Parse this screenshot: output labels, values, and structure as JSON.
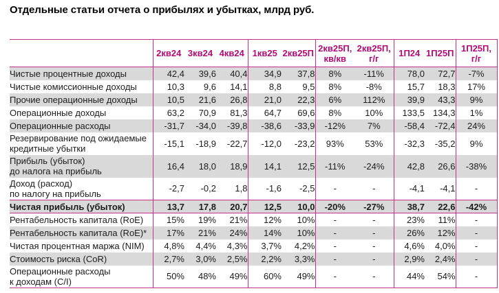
{
  "title": "Отдельные статьи отчета о прибылях и убытках, млрд руб.",
  "colors": {
    "accent_text": "#b10b74",
    "table_border": "#c92d88",
    "row_stripe": "#d9d9d9",
    "body_text": "#1c1c1c",
    "background": "#ffffff"
  },
  "table": {
    "label_col_width": 208,
    "columns": [
      {
        "header": [
          "2кв24"
        ],
        "width": 46,
        "align": "num",
        "group_start": true,
        "group_end": false
      },
      {
        "header": [
          "3кв24"
        ],
        "width": 46,
        "align": "num",
        "group_start": false,
        "group_end": false
      },
      {
        "header": [
          "4кв24"
        ],
        "width": 46,
        "align": "num",
        "group_start": false,
        "group_end": false
      },
      {
        "header": [
          "1кв25"
        ],
        "width": 49,
        "align": "num",
        "group_start": true,
        "group_end": false
      },
      {
        "header": [
          "2кв25П"
        ],
        "width": 49,
        "align": "num",
        "group_start": false,
        "group_end": false
      },
      {
        "header": [
          "2кв25П,",
          "кв/кв"
        ],
        "width": 57,
        "align": "pct",
        "group_start": true,
        "group_end": false
      },
      {
        "header": [
          "2кв25П,",
          "г/г"
        ],
        "width": 57,
        "align": "pct",
        "group_start": false,
        "group_end": false
      },
      {
        "header": [
          "1П24"
        ],
        "width": 45,
        "align": "num",
        "group_start": true,
        "group_end": false
      },
      {
        "header": [
          "1П25П"
        ],
        "width": 45,
        "align": "num",
        "group_start": false,
        "group_end": false
      },
      {
        "header": [
          "1П25П,",
          "г/г"
        ],
        "width": 60,
        "align": "pct",
        "group_start": true,
        "group_end": true
      }
    ],
    "rows": [
      {
        "label": [
          "Чистые процентные доходы"
        ],
        "stripe": true,
        "bold": false,
        "total": false,
        "values": [
          "42,4",
          "39,6",
          "40,4",
          "34,9",
          "37,8",
          "8%",
          "-11%",
          "78,0",
          "72,7",
          "-7%"
        ]
      },
      {
        "label": [
          "Чистые комиссионные доходы"
        ],
        "stripe": false,
        "bold": false,
        "total": false,
        "values": [
          "10,3",
          "9,6",
          "14,1",
          "8,8",
          "9,5",
          "8%",
          "-8%",
          "15,7",
          "18,3",
          "17%"
        ]
      },
      {
        "label": [
          "Прочие операционные доходы"
        ],
        "stripe": true,
        "bold": false,
        "total": false,
        "values": [
          "10,5",
          "21,6",
          "26,8",
          "21,0",
          "22,3",
          "6%",
          "112%",
          "39,9",
          "43,3",
          "9%"
        ]
      },
      {
        "label": [
          "Операционные доходы"
        ],
        "stripe": false,
        "bold": false,
        "total": false,
        "values": [
          "63,2",
          "70,9",
          "81,3",
          "64,7",
          "69,6",
          "8%",
          "10%",
          "133,5",
          "134,3",
          "1%"
        ]
      },
      {
        "label": [
          "Операционные расходы"
        ],
        "stripe": true,
        "bold": false,
        "total": false,
        "values": [
          "-31,7",
          "-34,0",
          "-39,8",
          "-38,6",
          "-33,9",
          "-12%",
          "7%",
          "-58,4",
          "-72,4",
          "24%"
        ]
      },
      {
        "label": [
          "Резервирование под ожидаемые",
          "кредитные убытки"
        ],
        "stripe": false,
        "bold": false,
        "total": false,
        "values": [
          "-15,1",
          "-18,9",
          "-22,7",
          "-12,0",
          "-23,2",
          "93%",
          "53%",
          "-32,3",
          "-35,2",
          "9%"
        ]
      },
      {
        "label": [
          "Прибыль (убыток)",
          "до налога на прибыль"
        ],
        "stripe": true,
        "bold": false,
        "total": false,
        "values": [
          "16,4",
          "18,0",
          "18,9",
          "14,1",
          "12,5",
          "-11%",
          "-24%",
          "42,8",
          "26,6",
          "-38%"
        ]
      },
      {
        "label": [
          "Доход (расход)",
          "по налогу на прибыль"
        ],
        "stripe": false,
        "bold": false,
        "total": false,
        "values": [
          "-2,7",
          "-0,2",
          "1,8",
          "-1,6",
          "-2,5",
          "-",
          "-",
          "-4,1",
          "-4,1",
          "-"
        ]
      },
      {
        "label": [
          "Чистая прибыль (убыток)"
        ],
        "stripe": true,
        "bold": true,
        "total": true,
        "values": [
          "13,7",
          "17,8",
          "20,7",
          "12,5",
          "10,0",
          "-20%",
          "-27%",
          "38,7",
          "22,6",
          "-42%"
        ]
      },
      {
        "label": [
          "Рентабельность капитала (RoE)"
        ],
        "stripe": false,
        "bold": false,
        "total": false,
        "values": [
          "15%",
          "19%",
          "21%",
          "12%",
          "10%",
          "-",
          "-",
          "23%",
          "11%",
          "-"
        ]
      },
      {
        "label": [
          "Рентабельность капитала (RoE)*"
        ],
        "stripe": true,
        "bold": false,
        "total": false,
        "values": [
          "17%",
          "21%",
          "24%",
          "14%",
          "10%",
          "-",
          "-",
          "26%",
          "12%",
          "-"
        ]
      },
      {
        "label": [
          "Чистая процентная маржа (NIM)"
        ],
        "stripe": false,
        "bold": false,
        "total": false,
        "values": [
          "4,8%",
          "4,4%",
          "4,3%",
          "3,7%",
          "4,2%",
          "-",
          "-",
          "4,6%",
          "4,0%",
          "-"
        ]
      },
      {
        "label": [
          "Стоимость риска (CoR)"
        ],
        "stripe": true,
        "bold": false,
        "total": false,
        "values": [
          "2,7%",
          "3,0%",
          "2,5%",
          "2,2%",
          "3,3%",
          "-",
          "-",
          "2,9%",
          "2,4%",
          "-"
        ]
      },
      {
        "label": [
          "Операционные расходы",
          "к доходам (C/I)"
        ],
        "stripe": false,
        "bold": false,
        "total": false,
        "values": [
          "50%",
          "48%",
          "49%",
          "60%",
          "49%",
          "-",
          "-",
          "44%",
          "54%",
          "-"
        ]
      }
    ]
  }
}
